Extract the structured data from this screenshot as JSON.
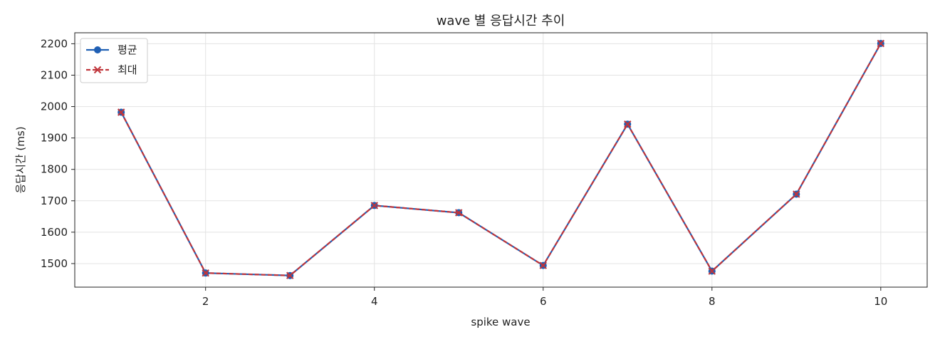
{
  "chart_data": {
    "type": "line",
    "title": "wave 별 응답시간 추이",
    "xlabel": "spike wave",
    "ylabel": "응답시간 (ms)",
    "xlim": [
      0.45,
      10.55
    ],
    "ylim": [
      1425,
      2235
    ],
    "xticks": [
      2,
      4,
      6,
      8,
      10
    ],
    "yticks": [
      1500,
      1600,
      1700,
      1800,
      1900,
      2000,
      2100,
      2200
    ],
    "grid": true,
    "legend_position": "top-left",
    "x": [
      1,
      2,
      3,
      4,
      5,
      6,
      7,
      8,
      9,
      10
    ],
    "series": [
      {
        "name": "평균",
        "values": [
          1982,
          1470,
          1462,
          1685,
          1662,
          1494,
          1944,
          1476,
          1721,
          2201
        ],
        "color": "#1f5fb4",
        "marker": "circle",
        "linestyle": "solid"
      },
      {
        "name": "최대",
        "values": [
          1982,
          1470,
          1462,
          1685,
          1662,
          1494,
          1944,
          1476,
          1721,
          2201
        ],
        "color": "#c0343a",
        "marker": "x",
        "linestyle": "dashed"
      }
    ]
  }
}
